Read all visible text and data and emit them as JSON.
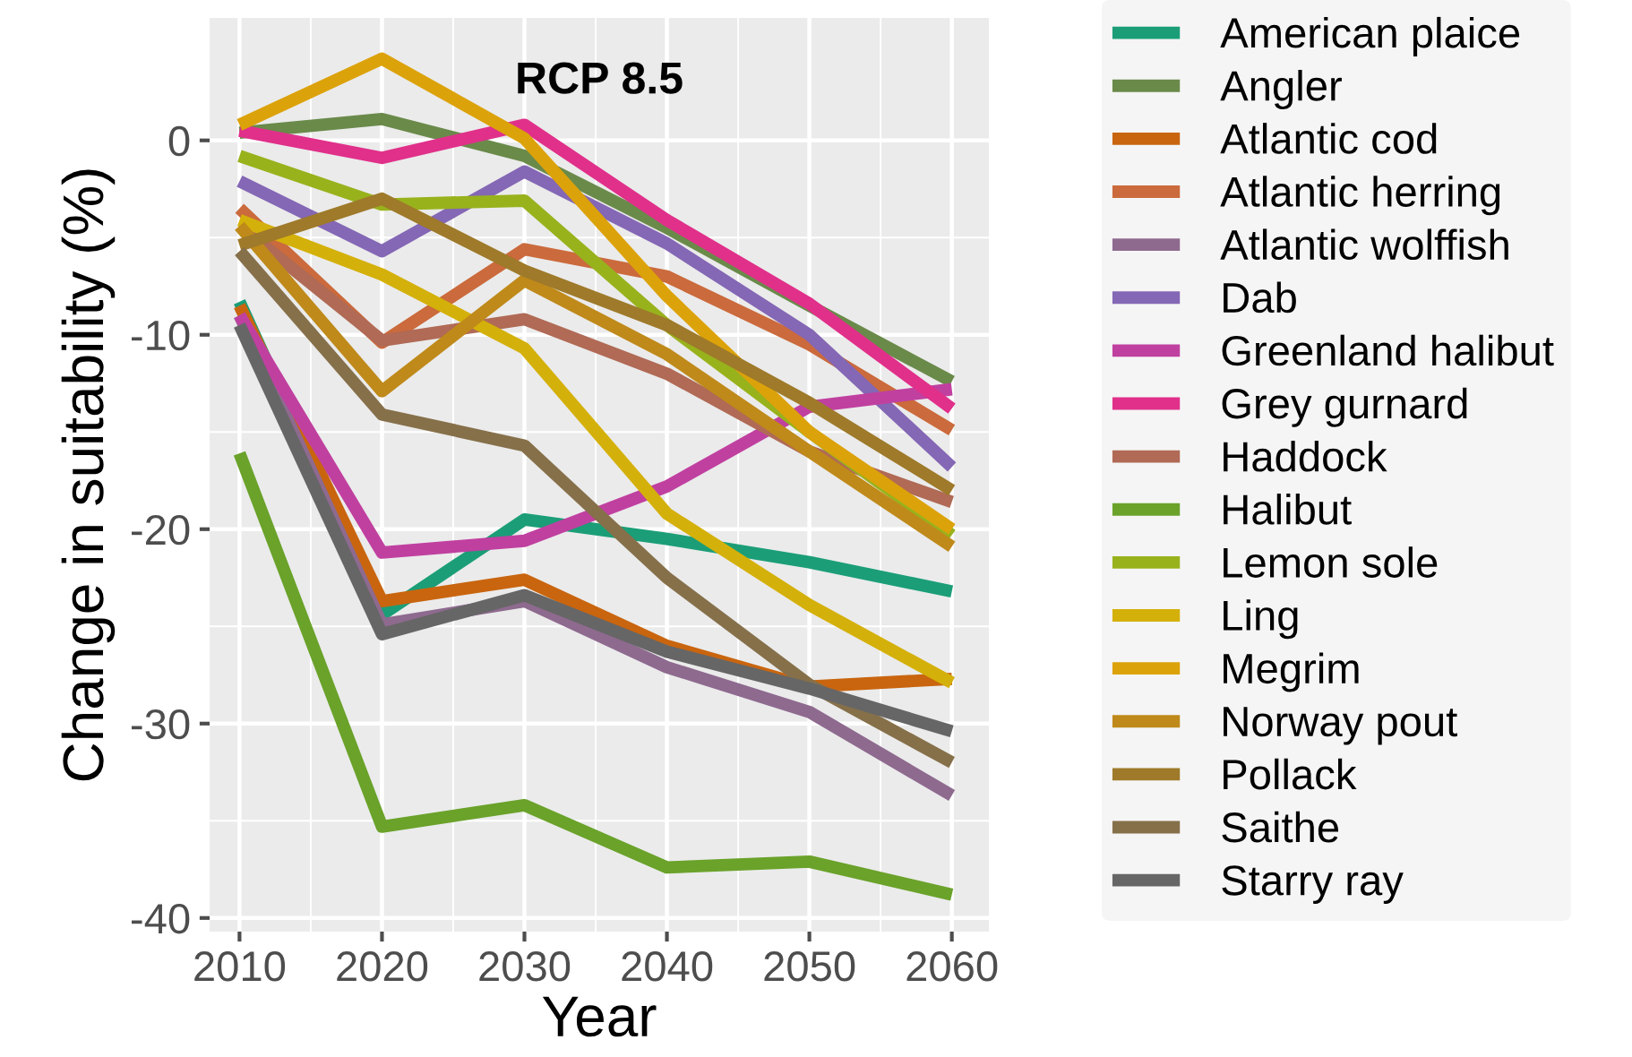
{
  "chart_data": {
    "type": "line",
    "title": "RCP 8.5",
    "xlabel": "Year",
    "ylabel": "Change in suitability (%)",
    "x": [
      2010,
      2020,
      2030,
      2040,
      2050,
      2060
    ],
    "xlim": [
      2007.9,
      2062.6
    ],
    "ylim": [
      -40.7,
      6.3
    ],
    "xticks": [
      2010,
      2020,
      2030,
      2040,
      2050,
      2060
    ],
    "yticks": [
      -40,
      -30,
      -20,
      -10,
      0
    ],
    "grid": true,
    "legend": "right",
    "marker": "none",
    "line_style": "solid",
    "series": [
      {
        "name": "American plaice",
        "color": "#1b9e77",
        "values": [
          -8.3,
          -24.4,
          -19.5,
          -20.5,
          -21.7,
          -23.2
        ]
      },
      {
        "name": "Angler",
        "color": "#6a8a4a",
        "values": [
          0.4,
          1.1,
          -0.8,
          -4.5,
          -8.5,
          -12.4
        ]
      },
      {
        "name": "Atlantic cod",
        "color": "#c9650f",
        "values": [
          -8.5,
          -23.7,
          -22.6,
          -26.0,
          -28.1,
          -27.7
        ]
      },
      {
        "name": "Atlantic herring",
        "color": "#cb6a3c",
        "values": [
          -3.5,
          -10.4,
          -5.6,
          -7.0,
          -10.5,
          -14.9
        ]
      },
      {
        "name": "Atlantic wolffish",
        "color": "#8e6a8f",
        "values": [
          -9.0,
          -24.9,
          -23.7,
          -27.1,
          -29.4,
          -33.7
        ]
      },
      {
        "name": "Dab",
        "color": "#8467b5",
        "values": [
          -2.1,
          -5.7,
          -1.6,
          -5.3,
          -10.0,
          -16.8
        ]
      },
      {
        "name": "Greenland halibut",
        "color": "#c040a0",
        "values": [
          -9.0,
          -21.2,
          -20.6,
          -17.8,
          -13.7,
          -12.8
        ]
      },
      {
        "name": "Grey gurnard",
        "color": "#e0308a",
        "values": [
          0.5,
          -0.9,
          0.8,
          -4.1,
          -8.4,
          -13.8
        ]
      },
      {
        "name": "Haddock",
        "color": "#b06a55",
        "values": [
          -4.4,
          -10.3,
          -9.2,
          -12.0,
          -16.0,
          -18.6
        ]
      },
      {
        "name": "Halibut",
        "color": "#6aa22a",
        "values": [
          -16.1,
          -35.3,
          -34.2,
          -37.4,
          -37.1,
          -38.8
        ]
      },
      {
        "name": "Lemon sole",
        "color": "#98b21c",
        "values": [
          -0.8,
          -3.3,
          -3.1,
          -9.5,
          -15.0,
          -20.3
        ]
      },
      {
        "name": "Ling",
        "color": "#d4b00a",
        "values": [
          -4.1,
          -6.9,
          -10.7,
          -19.2,
          -23.9,
          -27.9
        ]
      },
      {
        "name": "Megrim",
        "color": "#dca20a",
        "values": [
          0.8,
          4.2,
          0.1,
          -8.0,
          -15.0,
          -20.0
        ]
      },
      {
        "name": "Norway pout",
        "color": "#bf8a1a",
        "values": [
          -4.4,
          -12.9,
          -7.2,
          -11.0,
          -16.0,
          -20.9
        ]
      },
      {
        "name": "Pollack",
        "color": "#9e7a2a",
        "values": [
          -5.4,
          -3.0,
          -6.7,
          -9.5,
          -13.5,
          -18.0
        ]
      },
      {
        "name": "Saithe",
        "color": "#86704a",
        "values": [
          -5.7,
          -14.1,
          -15.7,
          -22.5,
          -28.0,
          -32.0
        ]
      },
      {
        "name": "Starry ray",
        "color": "#666666",
        "values": [
          -9.5,
          -25.4,
          -23.4,
          -26.3,
          -28.2,
          -30.4
        ]
      }
    ]
  }
}
